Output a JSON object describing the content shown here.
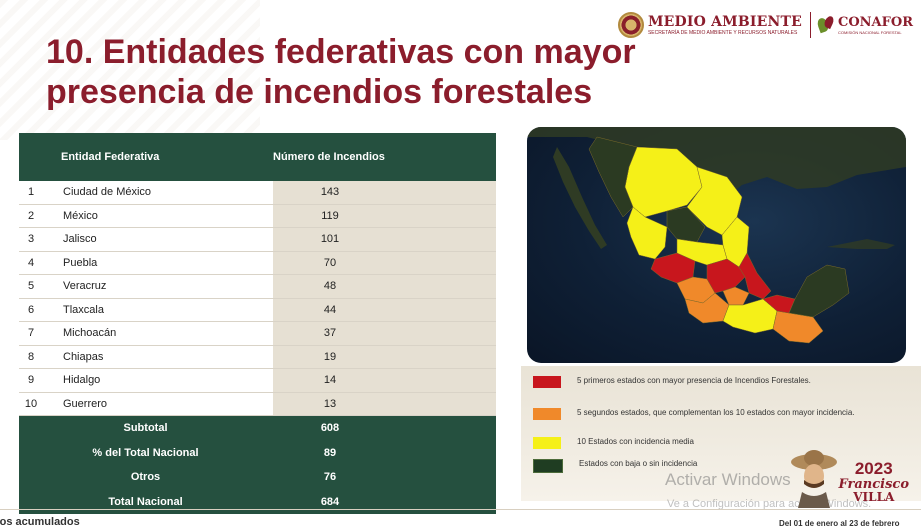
{
  "header": {
    "ministry": "MEDIO AMBIENTE",
    "ministry_sub": "SECRETARÍA DE MEDIO AMBIENTE Y RECURSOS NATURALES",
    "agency": "CONAFOR",
    "agency_sub": "COMISIÓN NACIONAL FORESTAL"
  },
  "title": "10. Entidades federativas con mayor presencia de incendios forestales",
  "table": {
    "headers": [
      "Entidad Federativa",
      "Número de Incendios"
    ],
    "rows": [
      {
        "rank": "1",
        "state": "Ciudad de México",
        "fires": "143"
      },
      {
        "rank": "2",
        "state": "México",
        "fires": "119"
      },
      {
        "rank": "3",
        "state": "Jalisco",
        "fires": "101"
      },
      {
        "rank": "4",
        "state": "Puebla",
        "fires": "70"
      },
      {
        "rank": "5",
        "state": "Veracruz",
        "fires": "48"
      },
      {
        "rank": "6",
        "state": "Tlaxcala",
        "fires": "44"
      },
      {
        "rank": "7",
        "state": "Michoacán",
        "fires": "37"
      },
      {
        "rank": "8",
        "state": "Chiapas",
        "fires": "19"
      },
      {
        "rank": "9",
        "state": "Hidalgo",
        "fires": "14"
      },
      {
        "rank": "10",
        "state": "Guerrero",
        "fires": "13"
      }
    ],
    "summary": [
      {
        "label": "Subtotal",
        "value": "608"
      },
      {
        "label": "% del Total Nacional",
        "value": "89"
      },
      {
        "label": "Otros",
        "value": "76"
      },
      {
        "label": "Total Nacional",
        "value": "684"
      }
    ]
  },
  "legend": [
    {
      "color": "#c8161d",
      "text": "5 primeros estados con mayor presencia de Incendios Forestales."
    },
    {
      "color": "#f0892a",
      "text": "5 segundos estados, que complementan los 10 estados con mayor incidencia."
    },
    {
      "color": "#f5f018",
      "text": "10 Estados con incidencia media"
    },
    {
      "color": "#1f3d22",
      "text": "Estados con baja o sin incidencia"
    }
  ],
  "map_colors": {
    "top5": "#c8161d",
    "next5": "#f0892a",
    "medium": "#f5f018",
    "low": "#2b3a22"
  },
  "overlay": {
    "activate": "Activar Windows",
    "activate_sub": "Ve a Configuración para activar Windows."
  },
  "badge": {
    "year": "2023",
    "name": "Francisco",
    "surname": "VILLA"
  },
  "footer": {
    "left": "tos acumulados",
    "right": "Del 01 de enero al 23 de febrero"
  }
}
